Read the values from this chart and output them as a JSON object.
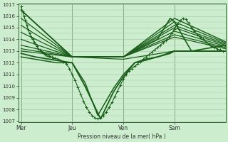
{
  "bg_color": "#cceece",
  "grid_color": "#aaccaa",
  "line_color": "#1a5e1a",
  "ylabel_text": "Pression niveau de la mer( hPa )",
  "ylim": [
    1007,
    1017
  ],
  "yticks": [
    1007,
    1008,
    1009,
    1010,
    1011,
    1012,
    1013,
    1014,
    1015,
    1016,
    1017
  ],
  "day_labels": [
    "Mer",
    "Jeu",
    "Ven",
    "Sam"
  ],
  "day_positions": [
    0,
    72,
    144,
    216
  ],
  "xlim": [
    -4,
    288
  ],
  "fig_w": 3.2,
  "fig_h": 2.0,
  "dpi": 100,
  "lines": [
    {
      "x": [
        0,
        2,
        4,
        6,
        8,
        10,
        12,
        14,
        16,
        18,
        20,
        22,
        24,
        26,
        28,
        30,
        32,
        34,
        36,
        38,
        40,
        42,
        44,
        46,
        48,
        52,
        56,
        60,
        64,
        68,
        72,
        76,
        80,
        84,
        88,
        92,
        96,
        100,
        104,
        108,
        112,
        116,
        120,
        124,
        128,
        132,
        136,
        140,
        144,
        148,
        152,
        156,
        160,
        164,
        168,
        172,
        176,
        180,
        184,
        188,
        192,
        196,
        200,
        204,
        208,
        212,
        216,
        220,
        224,
        228,
        232,
        236,
        240,
        244,
        248,
        252,
        256,
        260,
        264,
        268,
        272,
        276,
        280,
        284,
        288
      ],
      "y": [
        1016.8,
        1016.4,
        1016.0,
        1015.6,
        1015.2,
        1014.8,
        1014.5,
        1014.2,
        1014.0,
        1013.8,
        1013.6,
        1013.4,
        1013.2,
        1013.1,
        1013.0,
        1012.9,
        1012.8,
        1012.7,
        1012.7,
        1012.6,
        1012.6,
        1012.5,
        1012.5,
        1012.4,
        1012.4,
        1012.3,
        1012.2,
        1012.1,
        1011.9,
        1011.5,
        1011.0,
        1010.5,
        1009.9,
        1009.3,
        1008.7,
        1008.2,
        1007.8,
        1007.5,
        1007.3,
        1007.2,
        1007.3,
        1007.5,
        1007.8,
        1008.2,
        1008.6,
        1009.1,
        1009.6,
        1010.1,
        1010.6,
        1011.0,
        1011.3,
        1011.5,
        1011.7,
        1011.9,
        1012.1,
        1012.3,
        1012.5,
        1012.7,
        1012.9,
        1013.1,
        1013.3,
        1013.5,
        1013.7,
        1013.9,
        1014.2,
        1014.5,
        1014.9,
        1015.3,
        1015.6,
        1015.8,
        1015.7,
        1015.4,
        1015.0,
        1014.7,
        1014.4,
        1014.2,
        1014.0,
        1013.8,
        1013.6,
        1013.4,
        1013.3,
        1013.2,
        1013.1,
        1013.0,
        1013.0
      ],
      "marker": "+",
      "ms": 2.2,
      "lw": 0.8,
      "mew": 0.7
    },
    {
      "x": [
        0,
        72,
        144,
        216,
        288
      ],
      "y": [
        1016.5,
        1012.5,
        1012.5,
        1015.8,
        1013.8
      ],
      "marker": null,
      "lw": 1.0
    },
    {
      "x": [
        0,
        72,
        144,
        216,
        288
      ],
      "y": [
        1015.8,
        1012.5,
        1012.5,
        1015.5,
        1013.7
      ],
      "marker": null,
      "lw": 0.9
    },
    {
      "x": [
        0,
        72,
        144,
        216,
        288
      ],
      "y": [
        1015.2,
        1012.5,
        1012.5,
        1015.2,
        1013.6
      ],
      "marker": null,
      "lw": 0.9
    },
    {
      "x": [
        0,
        72,
        144,
        216,
        288
      ],
      "y": [
        1014.6,
        1012.5,
        1012.5,
        1015.0,
        1013.5
      ],
      "marker": null,
      "lw": 0.9
    },
    {
      "x": [
        0,
        72,
        144,
        216,
        288
      ],
      "y": [
        1014.0,
        1012.5,
        1012.5,
        1014.7,
        1013.4
      ],
      "marker": null,
      "lw": 0.9
    },
    {
      "x": [
        0,
        72,
        144,
        216,
        288
      ],
      "y": [
        1013.5,
        1012.5,
        1012.5,
        1014.4,
        1013.3
      ],
      "marker": null,
      "lw": 0.9
    },
    {
      "x": [
        0,
        72,
        144,
        216,
        288
      ],
      "y": [
        1013.2,
        1012.5,
        1012.5,
        1014.2,
        1013.2
      ],
      "marker": null,
      "lw": 0.9
    },
    {
      "x": [
        0,
        72,
        144,
        216,
        288
      ],
      "y": [
        1013.0,
        1012.5,
        1012.3,
        1013.0,
        1013.0
      ],
      "marker": null,
      "lw": 0.9
    },
    {
      "x": [
        0,
        72,
        144,
        192,
        210,
        216,
        240,
        288
      ],
      "y": [
        1016.5,
        1012.5,
        1012.5,
        1014.0,
        1015.8,
        1015.5,
        1013.0,
        1013.5
      ],
      "marker": null,
      "lw": 1.2
    },
    {
      "x": [
        0,
        20,
        50,
        72,
        90,
        112,
        130,
        144,
        160,
        175,
        192,
        210,
        216,
        288
      ],
      "y": [
        1012.8,
        1012.5,
        1012.2,
        1012.0,
        1010.0,
        1007.2,
        1009.5,
        1010.8,
        1012.0,
        1012.3,
        1012.5,
        1012.8,
        1013.0,
        1013.0
      ],
      "marker": null,
      "lw": 1.3
    },
    {
      "x": [
        0,
        20,
        50,
        72,
        90,
        108,
        130,
        144,
        160,
        175,
        192,
        216,
        288
      ],
      "y": [
        1012.5,
        1012.3,
        1012.0,
        1012.0,
        1010.3,
        1007.5,
        1009.8,
        1011.0,
        1012.0,
        1012.2,
        1012.5,
        1013.0,
        1013.0
      ],
      "marker": null,
      "lw": 1.1
    }
  ]
}
